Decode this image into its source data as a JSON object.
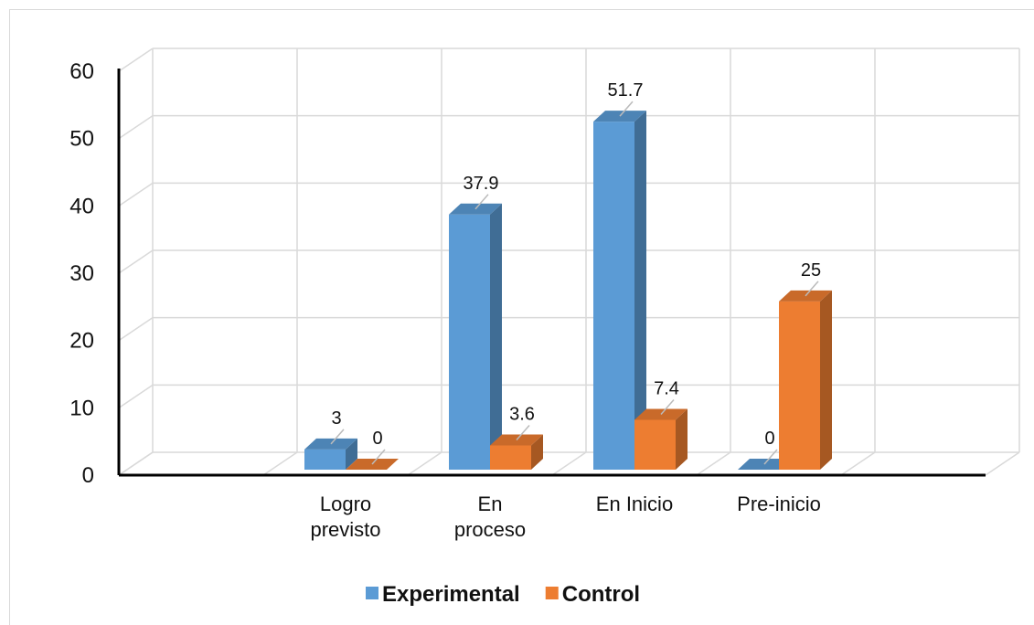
{
  "chart_data": {
    "type": "bar3d",
    "categories": [
      null,
      "Logro\nprevisto",
      "En\nproceso",
      "En Inicio",
      "Pre-inicio",
      null
    ],
    "series": [
      {
        "name": "Experimental",
        "color": "#5b9bd5",
        "values": [
          null,
          3,
          37.9,
          51.7,
          0,
          null
        ]
      },
      {
        "name": "Control",
        "color": "#ed7d31",
        "values": [
          null,
          0,
          3.6,
          7.4,
          25,
          null
        ]
      }
    ],
    "ylim": [
      0,
      60
    ],
    "yticks": [
      0,
      10,
      20,
      30,
      40,
      50,
      60
    ],
    "grid": true,
    "legend": "bottom"
  }
}
